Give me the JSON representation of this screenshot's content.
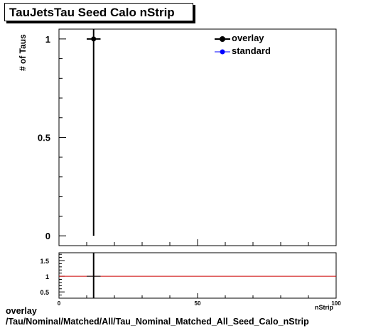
{
  "page_title": "TauJetsTau Seed Calo nStrip",
  "footer": {
    "line1": "overlay",
    "line2": "/Tau/Nominal/Matched/All/Tau_Nominal_Matched_All_Seed_Calo_nStrip"
  },
  "colors": {
    "overlay": "#000000",
    "standard": "#0000ff",
    "ratio_line": "#cc0000"
  },
  "chart_data": [
    {
      "type": "scatter",
      "title": "TauJetsTau Seed Calo nStrip",
      "xlabel": "nStrip",
      "ylabel": "# of Taus",
      "xlim": [
        0,
        100
      ],
      "ylim": [
        -0.05,
        1.05
      ],
      "y_ticks": [
        0,
        0.5,
        1
      ],
      "y_tick_labels": [
        "0",
        "0.5",
        "1"
      ],
      "legend": [
        "overlay",
        "standard"
      ],
      "legend_position": "top-right",
      "series": [
        {
          "name": "overlay",
          "x": [
            12.5
          ],
          "y": [
            1
          ],
          "x_err": [
            2.5
          ],
          "y_err": [
            1
          ]
        },
        {
          "name": "standard",
          "x": [
            12.5
          ],
          "y": [
            1
          ],
          "x_err": [
            2.5
          ],
          "y_err": [
            1
          ]
        }
      ]
    },
    {
      "type": "scatter",
      "xlim": [
        0,
        100
      ],
      "ylim": [
        0.3,
        1.75
      ],
      "x_ticks": [
        0,
        50,
        100
      ],
      "x_tick_labels": [
        "0",
        "50",
        "100"
      ],
      "y_ticks": [
        0.5,
        1,
        1.5
      ],
      "y_tick_labels": [
        "0.5",
        "1",
        "1.5"
      ],
      "reference_line": 1,
      "series": [
        {
          "x": [
            12.5
          ],
          "y": [
            1
          ],
          "x_err": [
            2.5
          ],
          "y_err": [
            1
          ]
        }
      ]
    }
  ]
}
